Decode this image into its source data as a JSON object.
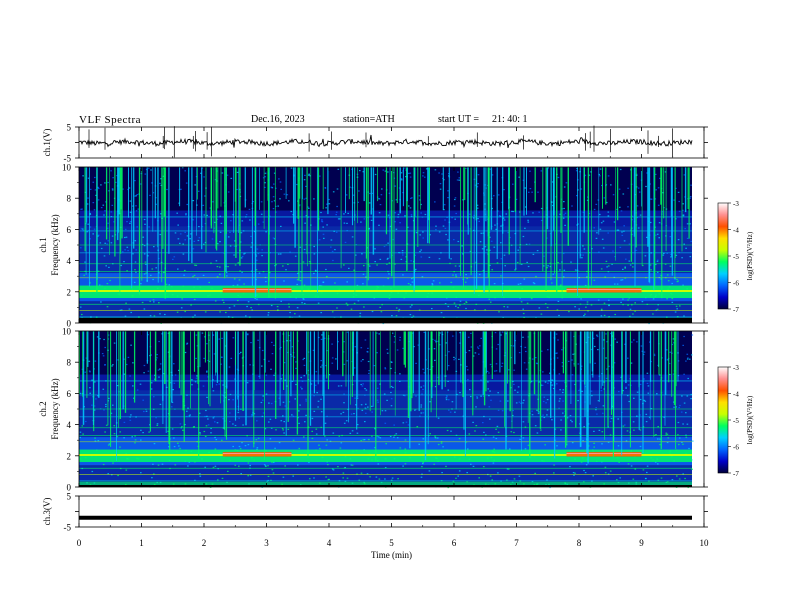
{
  "header": {
    "title": "VLF  Spectra",
    "date": "Dec.16, 2023",
    "station": "station=ATH",
    "start_label": "start  UT  =",
    "start_time": "21: 40: 1"
  },
  "chart_data": [
    {
      "type": "line",
      "name": "ch.1 waveform",
      "ylabel": "ch.1(V)",
      "ylim": [
        -5,
        5
      ],
      "yticks": [
        "5",
        "-5"
      ],
      "xlim": [
        0,
        10
      ]
    },
    {
      "type": "heatmap",
      "name": "ch.1 spectrogram",
      "ylabel": "ch.1\nFrequency (kHz)",
      "ylim": [
        0,
        10
      ],
      "yticks": [
        0,
        2,
        4,
        6,
        8,
        10
      ],
      "xlim": [
        0,
        10
      ],
      "colorbar": {
        "label": "log(PSD)(V²/Hz)",
        "range": [
          -7,
          -3
        ],
        "ticks": [
          "-3",
          "-4",
          "-5",
          "-6",
          "-7"
        ]
      },
      "features": {
        "strong_band_khz": [
          1.6,
          2.4
        ],
        "enhanced_segments_min": [
          [
            2.3,
            3.4
          ],
          [
            7.8,
            9.0
          ]
        ],
        "sferics": "dense vertical broadband impulses throughout"
      }
    },
    {
      "type": "heatmap",
      "name": "ch.2 spectrogram",
      "ylabel": "ch.2\nFrequency (kHz)",
      "ylim": [
        0,
        10
      ],
      "yticks": [
        0,
        2,
        4,
        6,
        8,
        10
      ],
      "xlim": [
        0,
        10
      ],
      "colorbar": {
        "label": "log(PSD)(V²/Hz)",
        "range": [
          -7,
          -3
        ],
        "ticks": [
          "-3",
          "-4",
          "-5",
          "-6",
          "-7"
        ]
      },
      "features": {
        "strong_band_khz": [
          1.6,
          2.4
        ],
        "enhanced_segments_min": [
          [
            2.3,
            3.4
          ],
          [
            7.8,
            9.0
          ]
        ],
        "sferics": "dense vertical broadband impulses throughout"
      }
    },
    {
      "type": "line",
      "name": "ch.3 waveform",
      "ylabel": "ch.3(V)",
      "ylim": [
        -5,
        5
      ],
      "yticks": [
        "5",
        "-5"
      ],
      "xlim": [
        0,
        10
      ],
      "xlabel": "Time  (min)",
      "xticks": [
        0,
        1,
        2,
        3,
        4,
        5,
        6,
        7,
        8,
        9,
        10
      ],
      "level_v": -2
    }
  ],
  "colors": {
    "scale": [
      "#00003a",
      "#0000c8",
      "#0066ff",
      "#00d0ff",
      "#00ff60",
      "#c8ff00",
      "#ffe000",
      "#ff5000",
      "#ff9090",
      "#ffffff"
    ]
  }
}
